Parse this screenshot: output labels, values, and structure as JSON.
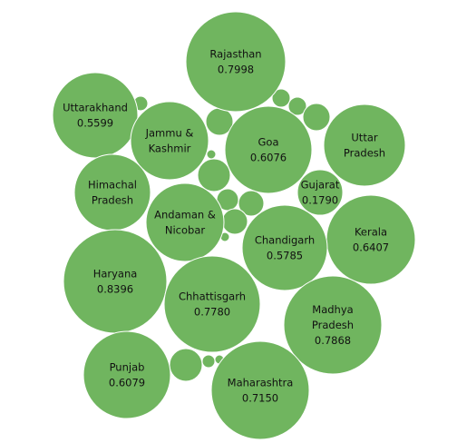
{
  "chart_data": {
    "type": "packed-bubble",
    "title": "",
    "color": "#70b55f",
    "series": [
      {
        "name": "Rajasthan",
        "lines": [
          "Rajasthan"
        ],
        "value": "0.7998"
      },
      {
        "name": "Uttarakhand",
        "lines": [
          "Uttarakhand"
        ],
        "value": "0.5599"
      },
      {
        "name": "Jammu & Kashmir",
        "lines": [
          "Jammu &",
          "Kashmir"
        ],
        "value": null
      },
      {
        "name": "Goa",
        "lines": [
          "Goa"
        ],
        "value": "0.6076"
      },
      {
        "name": "Uttar Pradesh",
        "lines": [
          "Uttar",
          "Pradesh"
        ],
        "value": null
      },
      {
        "name": "Himachal Pradesh",
        "lines": [
          "Himachal",
          "Pradesh"
        ],
        "value": null
      },
      {
        "name": "Gujarat",
        "lines": [
          "Gujarat"
        ],
        "value": "0.1790"
      },
      {
        "name": "Andaman & Nicobar",
        "lines": [
          "Andaman &",
          "Nicobar"
        ],
        "value": null
      },
      {
        "name": "Kerala",
        "lines": [
          "Kerala"
        ],
        "value": "0.6407"
      },
      {
        "name": "Chandigarh",
        "lines": [
          "Chandigarh"
        ],
        "value": "0.5785"
      },
      {
        "name": "Haryana",
        "lines": [
          "Haryana"
        ],
        "value": "0.8396"
      },
      {
        "name": "Chhattisgarh",
        "lines": [
          "Chhattisgarh"
        ],
        "value": "0.7780"
      },
      {
        "name": "Madhya Pradesh",
        "lines": [
          "Madhya",
          "Pradesh"
        ],
        "value": "0.7868"
      },
      {
        "name": "Punjab",
        "lines": [
          "Punjab"
        ],
        "value": "0.6079"
      },
      {
        "name": "Maharashtra",
        "lines": [
          "Maharashtra"
        ],
        "value": "0.7150"
      }
    ],
    "unlabeled_bubble_count": 14
  }
}
